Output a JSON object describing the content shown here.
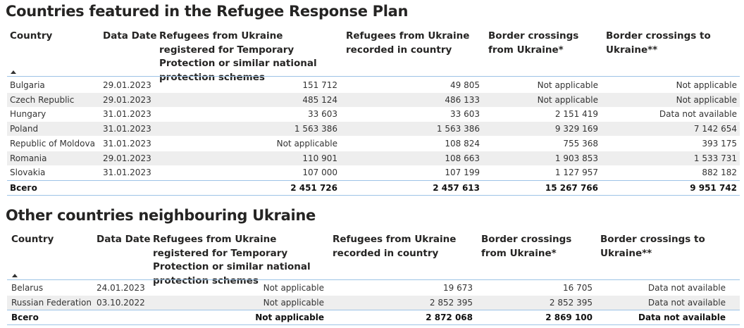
{
  "sections": [
    {
      "title": "Countries featured in the Refugee Response Plan",
      "columns": [
        "Country",
        "Data Date",
        "Refugees from Ukraine registered for Temporary Protection or similar national protection schemes",
        "Refugees from Ukraine recorded in country",
        "Border crossings from Ukraine*",
        "Border crossings to Ukraine**"
      ],
      "rows": [
        [
          "Bulgaria",
          "29.01.2023",
          "151 712",
          "49 805",
          "Not applicable",
          "Not applicable"
        ],
        [
          "Czech Republic",
          "29.01.2023",
          "485 124",
          "486 133",
          "Not applicable",
          "Not applicable"
        ],
        [
          "Hungary",
          "31.01.2023",
          "33 603",
          "33 603",
          "2 151 419",
          "Data not available"
        ],
        [
          "Poland",
          "31.01.2023",
          "1 563 386",
          "1 563 386",
          "9 329 169",
          "7 142 654"
        ],
        [
          "Republic of Moldova",
          "31.01.2023",
          "Not applicable",
          "108 824",
          "755 368",
          "393 175"
        ],
        [
          "Romania",
          "29.01.2023",
          "110 901",
          "108 663",
          "1 903 853",
          "1 533 731"
        ],
        [
          "Slovakia",
          "31.01.2023",
          "107 000",
          "107 199",
          "1 127 957",
          "882 182"
        ]
      ],
      "total": [
        "Всего",
        "2 451 726",
        "2 457 613",
        "15 267 766",
        "9 951 742"
      ]
    },
    {
      "title": "Other countries neighbouring Ukraine",
      "columns": [
        "Country",
        "Data Date",
        "Refugees from Ukraine registered for Temporary Protection or similar national protection schemes",
        "Refugees from Ukraine recorded in country",
        "Border crossings from Ukraine*",
        "Border crossings to Ukraine**"
      ],
      "rows": [
        [
          "Belarus",
          "24.01.2023",
          "Not applicable",
          "19 673",
          "16 705",
          "Data not available"
        ],
        [
          "Russian Federation",
          "03.10.2022",
          "Not applicable",
          "2 852 395",
          "2 852 395",
          "Data not available"
        ]
      ],
      "total": [
        "Всего",
        "Not applicable",
        "2 872 068",
        "2 869 100",
        "Data not available"
      ]
    }
  ]
}
